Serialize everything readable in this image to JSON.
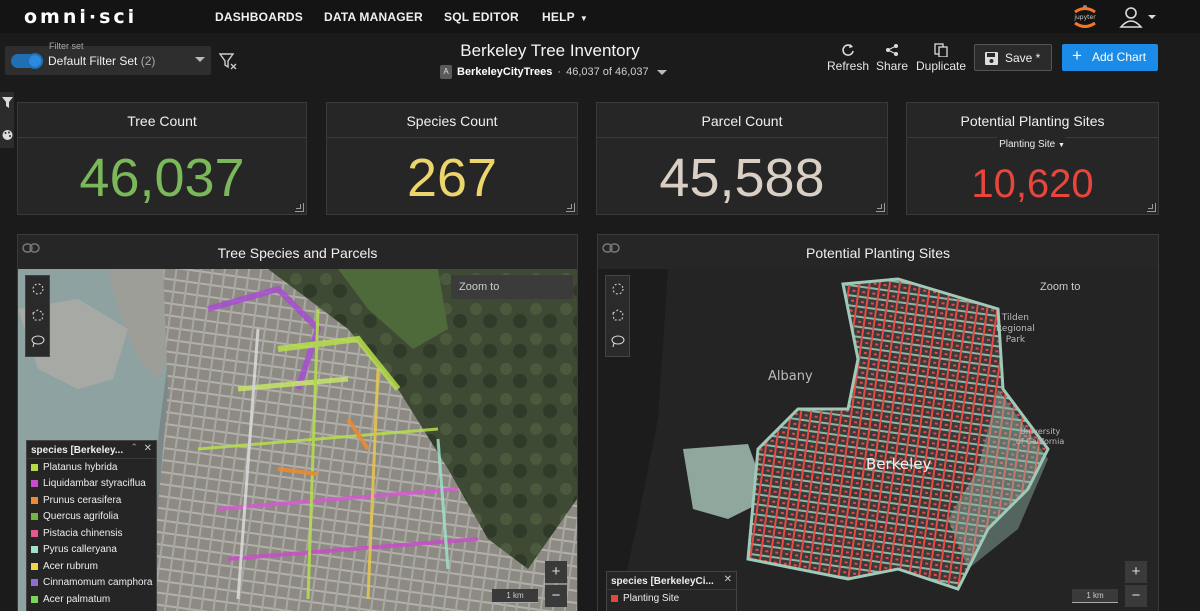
{
  "app": {
    "logo": "omni·sci"
  },
  "nav": {
    "items": [
      {
        "label": "DASHBOARDS"
      },
      {
        "label": "DATA MANAGER"
      },
      {
        "label": "SQL EDITOR"
      },
      {
        "label": "HELP"
      }
    ],
    "jupyter_icon": "jupyter-icon",
    "user_icon": "user-icon"
  },
  "filterset": {
    "label": "Filter set",
    "name": "Default Filter Set",
    "count": "(2)",
    "enabled": true
  },
  "dashboard": {
    "title": "Berkeley Tree Inventory",
    "table": "BerkeleyCityTrees",
    "record_count": "46,037 of 46,037",
    "table_icon_letter": "A"
  },
  "toolbar": {
    "refresh": "Refresh",
    "share": "Share",
    "duplicate": "Duplicate",
    "save": "Save *",
    "add_chart": "Add Chart"
  },
  "cards": {
    "tree_count": {
      "title": "Tree Count",
      "value": "46,037",
      "color": "#7ab85a"
    },
    "species_count": {
      "title": "Species Count",
      "value": "267",
      "color": "#ecd56c"
    },
    "parcel_count": {
      "title": "Parcel Count",
      "value": "45,588",
      "color": "#d9cfc4"
    },
    "planting_sites": {
      "title": "Potential Planting Sites",
      "selector": "Planting Site",
      "value": "10,620",
      "color": "#e8453c"
    }
  },
  "map_left": {
    "title": "Tree Species and Parcels",
    "zoom_to": "Zoom to",
    "scale": "1 km",
    "legend_title": "species [Berkeley...",
    "legend": [
      {
        "label": "Platanus hybrida",
        "color": "#b5d94a"
      },
      {
        "label": "Liquidambar styraciflua",
        "color": "#c94cc9"
      },
      {
        "label": "Prunus cerasifera",
        "color": "#ef8a2f"
      },
      {
        "label": "Quercus agrifolia",
        "color": "#6fb844"
      },
      {
        "label": "Pistacia chinensis",
        "color": "#e2598d"
      },
      {
        "label": "Pyrus calleryana",
        "color": "#9fe0c9"
      },
      {
        "label": "Acer rubrum",
        "color": "#f2d24d"
      },
      {
        "label": "Cinnamomum camphora",
        "color": "#8e6fd1"
      },
      {
        "label": "Acer palmatum",
        "color": "#7ed35a"
      }
    ]
  },
  "map_right": {
    "title": "Potential Planting Sites",
    "zoom_to": "Zoom to",
    "scale": "1 km",
    "legend_title": "species [BerkeleyCi...",
    "legend": [
      {
        "label": "Planting Site",
        "color": "#e8453c"
      }
    ],
    "labels": {
      "albany": "Albany",
      "berkeley": "Berkeley",
      "tilden": "Tilden\nRegional\nPark",
      "university": "University\nof California"
    }
  },
  "zoom": {
    "in": "+",
    "out": "−"
  }
}
